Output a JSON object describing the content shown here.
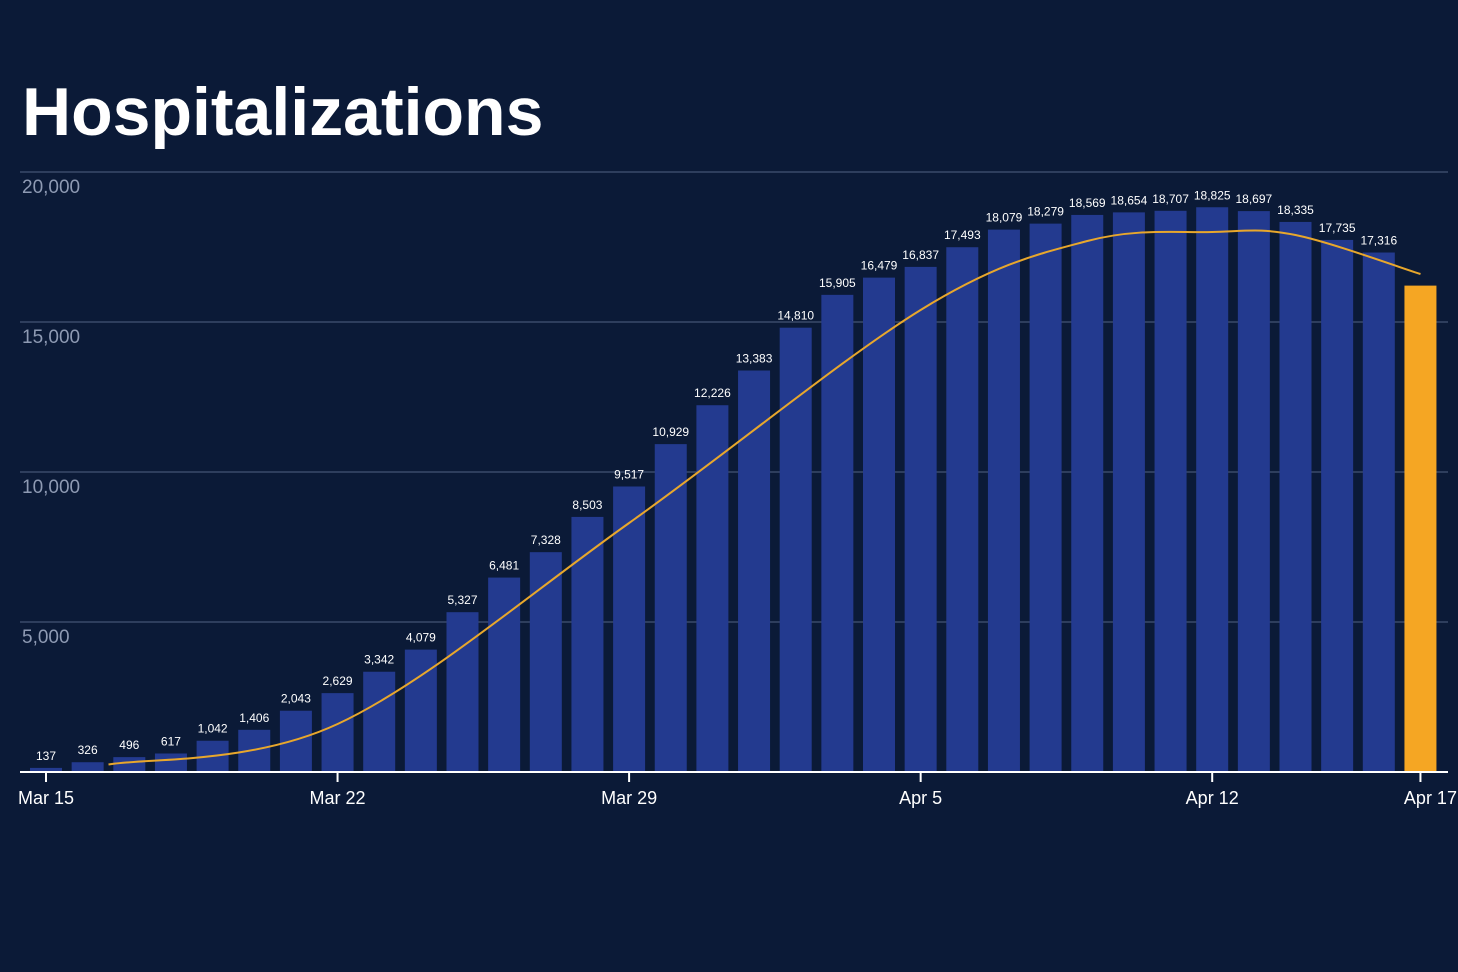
{
  "chart_data": {
    "type": "bar",
    "title": "Hospitalizations",
    "xlabel": "",
    "ylabel": "",
    "ylim": [
      0,
      20000
    ],
    "yticks": [
      5000,
      10000,
      15000,
      20000
    ],
    "ytick_labels": [
      "5,000",
      "10,000",
      "15,000",
      "20,000"
    ],
    "x_tick_labels": [
      {
        "index": 0,
        "label": "Mar 15"
      },
      {
        "index": 7,
        "label": "Mar 22"
      },
      {
        "index": 14,
        "label": "Mar 29"
      },
      {
        "index": 21,
        "label": "Apr 5"
      },
      {
        "index": 28,
        "label": "Apr 12"
      },
      {
        "index": 33,
        "label": "Apr 17"
      }
    ],
    "categories": [
      "Mar 15",
      "Mar 16",
      "Mar 17",
      "Mar 18",
      "Mar 19",
      "Mar 20",
      "Mar 21",
      "Mar 22",
      "Mar 23",
      "Mar 24",
      "Mar 25",
      "Mar 26",
      "Mar 27",
      "Mar 28",
      "Mar 29",
      "Mar 30",
      "Mar 31",
      "Apr 1",
      "Apr 2",
      "Apr 3",
      "Apr 4",
      "Apr 5",
      "Apr 6",
      "Apr 7",
      "Apr 8",
      "Apr 9",
      "Apr 10",
      "Apr 11",
      "Apr 12",
      "Apr 13",
      "Apr 14",
      "Apr 15",
      "Apr 16",
      "Apr 17"
    ],
    "values": [
      137,
      326,
      496,
      617,
      1042,
      1406,
      2043,
      2629,
      3342,
      4079,
      5327,
      6481,
      7328,
      8503,
      9517,
      10929,
      12226,
      13383,
      14810,
      15905,
      16479,
      16837,
      17493,
      18079,
      18279,
      18569,
      18654,
      18707,
      18825,
      18697,
      18335,
      17735,
      17316,
      16213
    ],
    "value_labels": [
      "137",
      "326",
      "496",
      "617",
      "1,042",
      "1,406",
      "2,043",
      "2,629",
      "3,342",
      "4,079",
      "5,327",
      "6,481",
      "7,328",
      "8,503",
      "9,517",
      "10,929",
      "12,226",
      "13,383",
      "14,810",
      "15,905",
      "16,479",
      "16,837",
      "17,493",
      "18,079",
      "18,279",
      "18,569",
      "18,654",
      "18,707",
      "18,825",
      "18,697",
      "18,335",
      "17,735",
      "17,316",
      ""
    ],
    "highlight_index": 33,
    "trend_line": {
      "type": "smoothed average",
      "x": [
        1.5,
        7,
        14,
        21,
        25,
        28,
        30,
        33
      ],
      "y": [
        250,
        1600,
        8300,
        15400,
        17700,
        18000,
        17900,
        16600
      ]
    },
    "colors": {
      "background": "#0b1a37",
      "bar": "#233a8f",
      "highlight_bar": "#f5a623",
      "trend_line": "#e8a72c",
      "gridline": "#3b4a6a",
      "axis": "#ffffff",
      "ytick_text": "#8e9ab3",
      "label_text": "#ffffff"
    },
    "grid": true,
    "legend": "none"
  }
}
